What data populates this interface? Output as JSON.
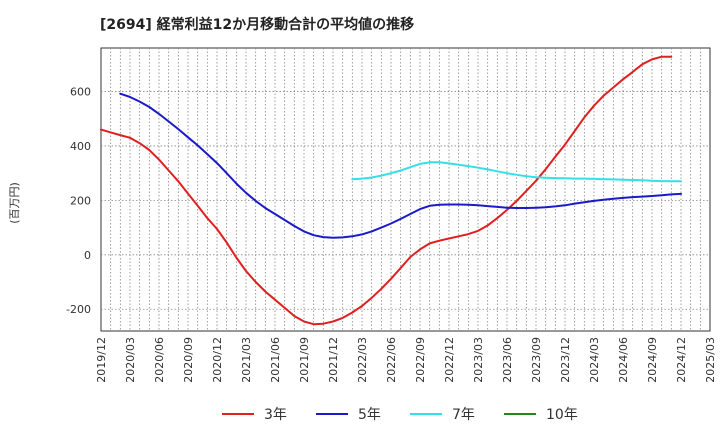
{
  "chart_data": {
    "type": "line",
    "title": "[2694]  経常利益12か月移動合計の平均値の推移",
    "ylabel": "(百万円)",
    "xlabel": "",
    "ylim": [
      -280,
      760
    ],
    "yticks": [
      -200,
      0,
      200,
      400,
      600
    ],
    "x_start": "2019/12",
    "x_end": "2025/03",
    "xticks": [
      "2019/12",
      "2020/03",
      "2020/06",
      "2020/09",
      "2020/12",
      "2021/03",
      "2021/06",
      "2021/09",
      "2021/12",
      "2022/03",
      "2022/06",
      "2022/09",
      "2022/12",
      "2023/03",
      "2023/06",
      "2023/09",
      "2023/12",
      "2024/03",
      "2024/06",
      "2024/09",
      "2024/12",
      "2025/03"
    ],
    "grid": true,
    "legend_position": "bottom",
    "series": [
      {
        "name": "3年",
        "color": "#e02020",
        "points": [
          [
            "2019/12",
            460
          ],
          [
            "2020/01",
            450
          ],
          [
            "2020/02",
            440
          ],
          [
            "2020/03",
            430
          ],
          [
            "2020/04",
            410
          ],
          [
            "2020/05",
            385
          ],
          [
            "2020/06",
            350
          ],
          [
            "2020/07",
            310
          ],
          [
            "2020/08",
            270
          ],
          [
            "2020/09",
            225
          ],
          [
            "2020/10",
            180
          ],
          [
            "2020/11",
            135
          ],
          [
            "2020/12",
            95
          ],
          [
            "2021/01",
            45
          ],
          [
            "2021/02",
            -10
          ],
          [
            "2021/03",
            -60
          ],
          [
            "2021/04",
            -100
          ],
          [
            "2021/05",
            -135
          ],
          [
            "2021/06",
            -165
          ],
          [
            "2021/07",
            -195
          ],
          [
            "2021/08",
            -225
          ],
          [
            "2021/09",
            -245
          ],
          [
            "2021/10",
            -255
          ],
          [
            "2021/11",
            -253
          ],
          [
            "2021/12",
            -245
          ],
          [
            "2022/01",
            -232
          ],
          [
            "2022/02",
            -212
          ],
          [
            "2022/03",
            -188
          ],
          [
            "2022/04",
            -158
          ],
          [
            "2022/05",
            -125
          ],
          [
            "2022/06",
            -88
          ],
          [
            "2022/07",
            -48
          ],
          [
            "2022/08",
            -8
          ],
          [
            "2022/09",
            20
          ],
          [
            "2022/10",
            42
          ],
          [
            "2022/11",
            52
          ],
          [
            "2022/12",
            60
          ],
          [
            "2023/01",
            68
          ],
          [
            "2023/02",
            76
          ],
          [
            "2023/03",
            88
          ],
          [
            "2023/04",
            108
          ],
          [
            "2023/05",
            135
          ],
          [
            "2023/06",
            165
          ],
          [
            "2023/07",
            198
          ],
          [
            "2023/08",
            235
          ],
          [
            "2023/09",
            272
          ],
          [
            "2023/10",
            315
          ],
          [
            "2023/11",
            360
          ],
          [
            "2023/12",
            405
          ],
          [
            "2024/01",
            455
          ],
          [
            "2024/02",
            505
          ],
          [
            "2024/03",
            548
          ],
          [
            "2024/04",
            585
          ],
          [
            "2024/05",
            615
          ],
          [
            "2024/06",
            645
          ],
          [
            "2024/07",
            672
          ],
          [
            "2024/08",
            700
          ],
          [
            "2024/09",
            718
          ],
          [
            "2024/10",
            728
          ],
          [
            "2024/11",
            728
          ]
        ]
      },
      {
        "name": "5年",
        "color": "#1a1acc",
        "points": [
          [
            "2020/02",
            592
          ],
          [
            "2020/03",
            580
          ],
          [
            "2020/04",
            563
          ],
          [
            "2020/05",
            543
          ],
          [
            "2020/06",
            518
          ],
          [
            "2020/07",
            490
          ],
          [
            "2020/08",
            462
          ],
          [
            "2020/09",
            432
          ],
          [
            "2020/10",
            402
          ],
          [
            "2020/11",
            370
          ],
          [
            "2020/12",
            337
          ],
          [
            "2021/01",
            300
          ],
          [
            "2021/02",
            262
          ],
          [
            "2021/03",
            228
          ],
          [
            "2021/04",
            198
          ],
          [
            "2021/05",
            172
          ],
          [
            "2021/06",
            150
          ],
          [
            "2021/07",
            128
          ],
          [
            "2021/08",
            106
          ],
          [
            "2021/09",
            86
          ],
          [
            "2021/10",
            72
          ],
          [
            "2021/11",
            65
          ],
          [
            "2021/12",
            63
          ],
          [
            "2022/01",
            64
          ],
          [
            "2022/02",
            68
          ],
          [
            "2022/03",
            75
          ],
          [
            "2022/04",
            86
          ],
          [
            "2022/05",
            100
          ],
          [
            "2022/06",
            115
          ],
          [
            "2022/07",
            132
          ],
          [
            "2022/08",
            150
          ],
          [
            "2022/09",
            168
          ],
          [
            "2022/10",
            180
          ],
          [
            "2022/11",
            184
          ],
          [
            "2022/12",
            185
          ],
          [
            "2023/01",
            185
          ],
          [
            "2023/02",
            184
          ],
          [
            "2023/03",
            182
          ],
          [
            "2023/04",
            179
          ],
          [
            "2023/05",
            176
          ],
          [
            "2023/06",
            173
          ],
          [
            "2023/07",
            172
          ],
          [
            "2023/08",
            172
          ],
          [
            "2023/09",
            173
          ],
          [
            "2023/10",
            175
          ],
          [
            "2023/11",
            178
          ],
          [
            "2023/12",
            182
          ],
          [
            "2024/01",
            188
          ],
          [
            "2024/02",
            193
          ],
          [
            "2024/03",
            198
          ],
          [
            "2024/04",
            202
          ],
          [
            "2024/05",
            206
          ],
          [
            "2024/06",
            209
          ],
          [
            "2024/07",
            212
          ],
          [
            "2024/08",
            214
          ],
          [
            "2024/09",
            216
          ],
          [
            "2024/10",
            219
          ],
          [
            "2024/11",
            222
          ],
          [
            "2024/12",
            224
          ]
        ]
      },
      {
        "name": "7年",
        "color": "#33e0e8",
        "points": [
          [
            "2022/02",
            278
          ],
          [
            "2022/03",
            280
          ],
          [
            "2022/04",
            284
          ],
          [
            "2022/05",
            291
          ],
          [
            "2022/06",
            300
          ],
          [
            "2022/07",
            310
          ],
          [
            "2022/08",
            322
          ],
          [
            "2022/09",
            334
          ],
          [
            "2022/10",
            340
          ],
          [
            "2022/11",
            340
          ],
          [
            "2022/12",
            336
          ],
          [
            "2023/01",
            331
          ],
          [
            "2023/02",
            326
          ],
          [
            "2023/03",
            320
          ],
          [
            "2023/04",
            314
          ],
          [
            "2023/05",
            307
          ],
          [
            "2023/06",
            300
          ],
          [
            "2023/07",
            294
          ],
          [
            "2023/08",
            289
          ],
          [
            "2023/09",
            285
          ],
          [
            "2023/10",
            283
          ],
          [
            "2023/11",
            282
          ],
          [
            "2023/12",
            281
          ],
          [
            "2024/01",
            280
          ],
          [
            "2024/02",
            280
          ],
          [
            "2024/03",
            279
          ],
          [
            "2024/04",
            278
          ],
          [
            "2024/05",
            277
          ],
          [
            "2024/06",
            276
          ],
          [
            "2024/07",
            275
          ],
          [
            "2024/08",
            274
          ],
          [
            "2024/09",
            272
          ],
          [
            "2024/10",
            271
          ],
          [
            "2024/11",
            270
          ],
          [
            "2024/12",
            270
          ]
        ]
      },
      {
        "name": "10年",
        "color": "#1a8a1a",
        "points": []
      }
    ]
  }
}
